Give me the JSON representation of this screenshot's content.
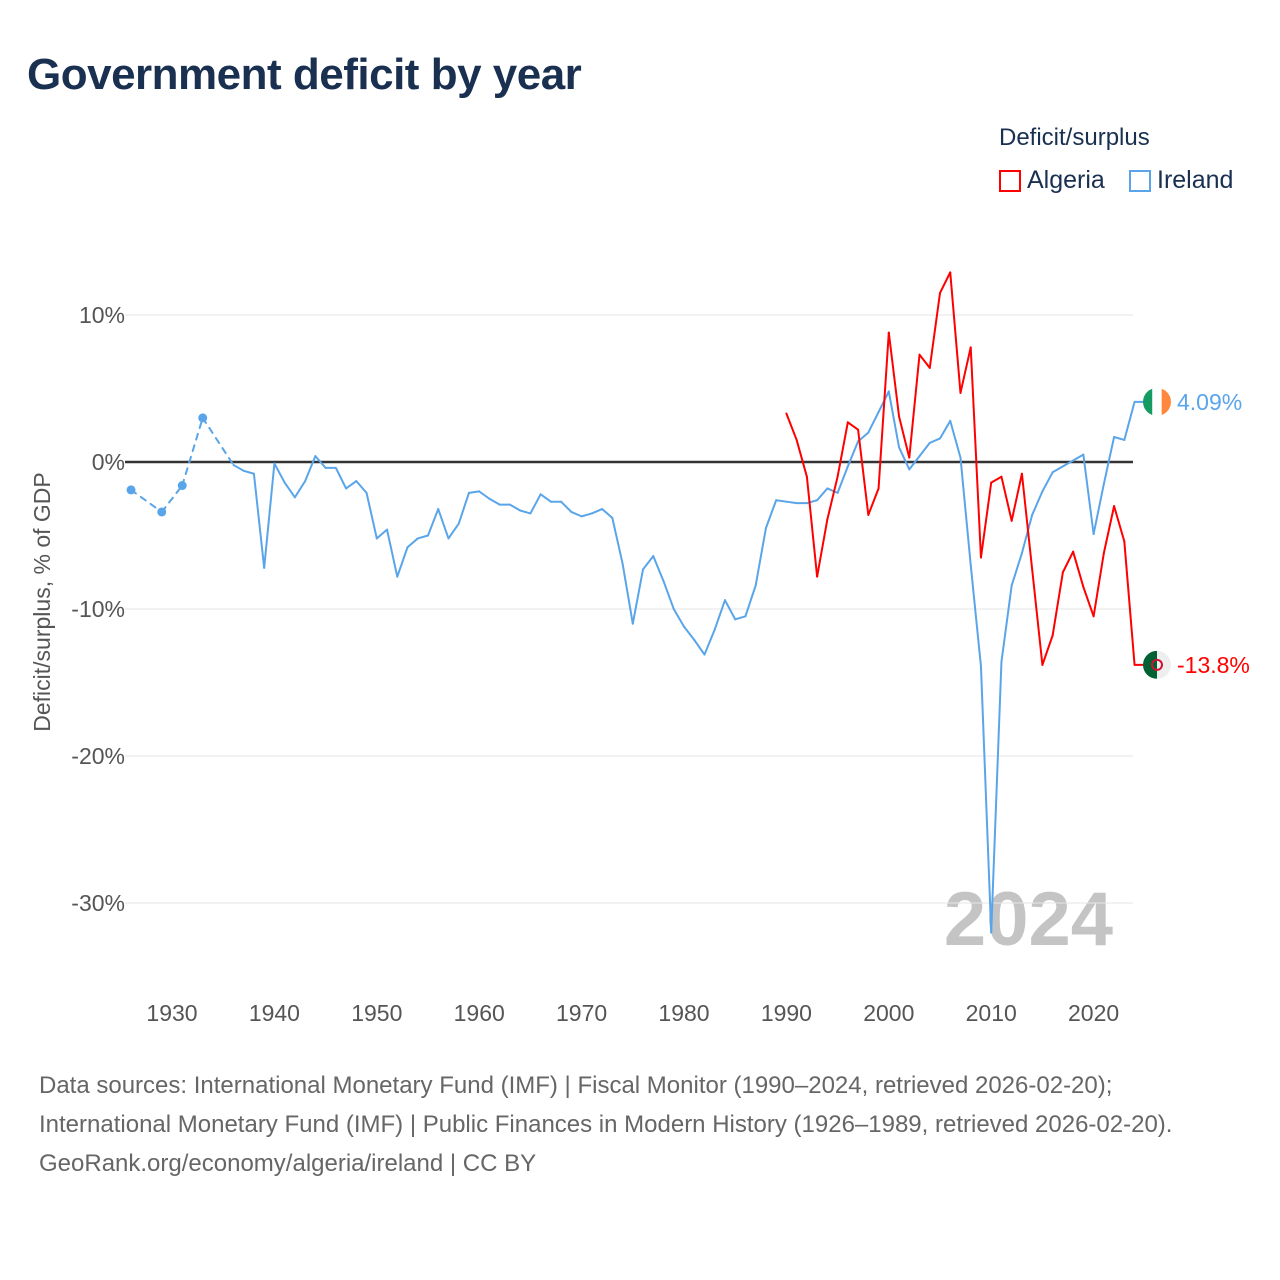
{
  "title": "Government deficit by year",
  "legend": {
    "title": "Deficit/surplus",
    "items": [
      {
        "name": "Algeria",
        "color": "#ff0000"
      },
      {
        "name": "Ireland",
        "color": "#5aa5ea"
      }
    ]
  },
  "footer": {
    "sources": "Data sources: International Monetary Fund (IMF) | Fiscal Monitor (1990–2024, retrieved 2026-02-20); International Monetary Fund (IMF) | Public Finances in Modern History (1926–1989, retrieved 2026-02-20).",
    "credit": "GeoRank.org/economy/algeria/ireland | CC BY"
  },
  "chart_data": {
    "type": "line",
    "title": "Government deficit by year",
    "ylabel": "Deficit/surplus, % of GDP",
    "xlabel": "",
    "ylim": [
      -35,
      14
    ],
    "xlim": [
      1926,
      2024
    ],
    "yticks": [
      {
        "v": 10,
        "label": "10%"
      },
      {
        "v": 0,
        "label": "0%"
      },
      {
        "v": -10,
        "label": "-10%"
      },
      {
        "v": -20,
        "label": "-20%"
      },
      {
        "v": -30,
        "label": "-30%"
      }
    ],
    "xticks": [
      1930,
      1940,
      1950,
      1960,
      1970,
      1980,
      1990,
      2000,
      2010,
      2020
    ],
    "year_watermark": "2024",
    "grid": true,
    "legend_position": "top-right",
    "series": [
      {
        "name": "Ireland",
        "color": "#5aa5ea",
        "end_label": "4.09%",
        "flag": "ireland",
        "points": [
          [
            1926,
            -1.9
          ],
          [
            1929,
            -3.4
          ],
          [
            1931,
            -1.6
          ],
          [
            1933,
            3.0
          ],
          [
            1936,
            -0.2
          ],
          [
            1937,
            -0.6
          ],
          [
            1938,
            -0.8
          ],
          [
            1939,
            -7.2
          ],
          [
            1940,
            -0.1
          ],
          [
            1941,
            -1.4
          ],
          [
            1942,
            -2.4
          ],
          [
            1943,
            -1.3
          ],
          [
            1944,
            0.4
          ],
          [
            1945,
            -0.4
          ],
          [
            1946,
            -0.4
          ],
          [
            1947,
            -1.8
          ],
          [
            1948,
            -1.3
          ],
          [
            1949,
            -2.1
          ],
          [
            1950,
            -5.2
          ],
          [
            1951,
            -4.6
          ],
          [
            1952,
            -7.8
          ],
          [
            1953,
            -5.8
          ],
          [
            1954,
            -5.2
          ],
          [
            1955,
            -5.0
          ],
          [
            1956,
            -3.2
          ],
          [
            1957,
            -5.2
          ],
          [
            1958,
            -4.2
          ],
          [
            1959,
            -2.1
          ],
          [
            1960,
            -2.0
          ],
          [
            1961,
            -2.5
          ],
          [
            1962,
            -2.9
          ],
          [
            1963,
            -2.9
          ],
          [
            1964,
            -3.3
          ],
          [
            1965,
            -3.5
          ],
          [
            1966,
            -2.2
          ],
          [
            1967,
            -2.7
          ],
          [
            1968,
            -2.7
          ],
          [
            1969,
            -3.4
          ],
          [
            1970,
            -3.7
          ],
          [
            1971,
            -3.5
          ],
          [
            1972,
            -3.2
          ],
          [
            1973,
            -3.8
          ],
          [
            1974,
            -6.9
          ],
          [
            1975,
            -11.0
          ],
          [
            1976,
            -7.3
          ],
          [
            1977,
            -6.4
          ],
          [
            1978,
            -8.1
          ],
          [
            1979,
            -10.0
          ],
          [
            1980,
            -11.2
          ],
          [
            1981,
            -12.1
          ],
          [
            1982,
            -13.1
          ],
          [
            1983,
            -11.4
          ],
          [
            1984,
            -9.4
          ],
          [
            1985,
            -10.7
          ],
          [
            1986,
            -10.5
          ],
          [
            1987,
            -8.4
          ],
          [
            1988,
            -4.5
          ],
          [
            1989,
            -2.6
          ],
          [
            1990,
            -2.7
          ],
          [
            1991,
            -2.8
          ],
          [
            1992,
            -2.8
          ],
          [
            1993,
            -2.6
          ],
          [
            1994,
            -1.8
          ],
          [
            1995,
            -2.1
          ],
          [
            1996,
            -0.3
          ],
          [
            1997,
            1.4
          ],
          [
            1998,
            2.0
          ],
          [
            1999,
            3.4
          ],
          [
            2000,
            4.8
          ],
          [
            2001,
            1.0
          ],
          [
            2002,
            -0.5
          ],
          [
            2003,
            0.4
          ],
          [
            2004,
            1.3
          ],
          [
            2005,
            1.6
          ],
          [
            2006,
            2.8
          ],
          [
            2007,
            0.3
          ],
          [
            2008,
            -7.0
          ],
          [
            2009,
            -13.9
          ],
          [
            2010,
            -32.0
          ],
          [
            2011,
            -13.6
          ],
          [
            2012,
            -8.4
          ],
          [
            2013,
            -6.2
          ],
          [
            2014,
            -3.6
          ],
          [
            2015,
            -2.0
          ],
          [
            2016,
            -0.7
          ],
          [
            2017,
            -0.3
          ],
          [
            2018,
            0.1
          ],
          [
            2019,
            0.5
          ],
          [
            2020,
            -4.9
          ],
          [
            2021,
            -1.5
          ],
          [
            2022,
            1.7
          ],
          [
            2023,
            1.5
          ],
          [
            2024,
            4.09
          ]
        ]
      },
      {
        "name": "Algeria",
        "color": "#ff0000",
        "end_label": "-13.8%",
        "flag": "algeria",
        "points": [
          [
            1990,
            3.3
          ],
          [
            1991,
            1.5
          ],
          [
            1992,
            -1.0
          ],
          [
            1993,
            -7.8
          ],
          [
            1994,
            -3.9
          ],
          [
            1995,
            -1.0
          ],
          [
            1996,
            2.7
          ],
          [
            1997,
            2.2
          ],
          [
            1998,
            -3.6
          ],
          [
            1999,
            -1.8
          ],
          [
            2000,
            8.8
          ],
          [
            2001,
            3.1
          ],
          [
            2002,
            0.3
          ],
          [
            2003,
            7.3
          ],
          [
            2004,
            6.4
          ],
          [
            2005,
            11.5
          ],
          [
            2006,
            12.9
          ],
          [
            2007,
            4.7
          ],
          [
            2008,
            7.8
          ],
          [
            2009,
            -6.5
          ],
          [
            2010,
            -1.4
          ],
          [
            2011,
            -1.0
          ],
          [
            2012,
            -4.0
          ],
          [
            2013,
            -0.8
          ],
          [
            2014,
            -7.3
          ],
          [
            2015,
            -13.8
          ],
          [
            2016,
            -11.8
          ],
          [
            2017,
            -7.5
          ],
          [
            2018,
            -6.1
          ],
          [
            2019,
            -8.5
          ],
          [
            2020,
            -10.5
          ],
          [
            2021,
            -6.2
          ],
          [
            2022,
            -3.0
          ],
          [
            2023,
            -5.4
          ],
          [
            2024,
            -13.8
          ]
        ]
      }
    ]
  }
}
